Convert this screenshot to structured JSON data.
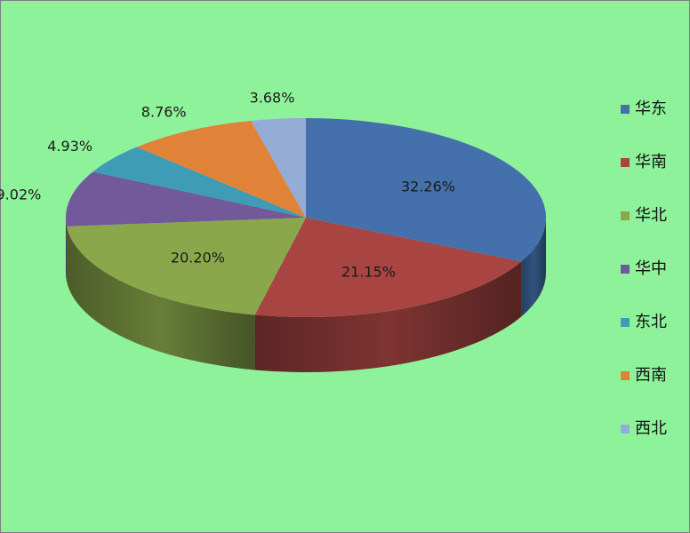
{
  "chart_data": {
    "type": "pie",
    "categories": [
      "华东",
      "华南",
      "华北",
      "华中",
      "东北",
      "西南",
      "西北"
    ],
    "values": [
      32.26,
      21.15,
      20.2,
      9.02,
      4.93,
      8.76,
      3.68
    ],
    "value_labels": [
      "32.26%",
      "21.15%",
      "20.20%",
      "9.02%",
      "4.93%",
      "8.76%",
      "3.68%"
    ],
    "colors": [
      "#4470ab",
      "#a84543",
      "#8aa84b",
      "#72599a",
      "#3f9cb7",
      "#e08339",
      "#95acd6"
    ],
    "style": "3d",
    "start": "12 o'clock",
    "direction": "clockwise",
    "legend_position": "right",
    "title": ""
  }
}
